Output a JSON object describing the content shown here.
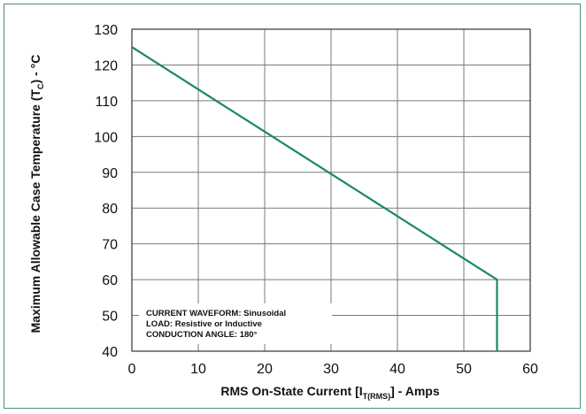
{
  "chart_data": {
    "type": "line",
    "x_label_parts": [
      "RMS On-State Current [I",
      "T(RMS)",
      "] - Amps"
    ],
    "y_label_parts": [
      "Maximum Allowable Case Temperature (T",
      "C",
      ") - °C"
    ],
    "xlim": [
      0,
      60
    ],
    "ylim": [
      40,
      130
    ],
    "x_ticks": [
      "0",
      "10",
      "20",
      "30",
      "40",
      "50",
      "60"
    ],
    "y_ticks": [
      "40",
      "50",
      "60",
      "70",
      "80",
      "90",
      "100",
      "110",
      "120",
      "130"
    ],
    "grid": true,
    "annotations": [
      "CURRENT WAVEFORM: Sinusoidal",
      "LOAD: Resistive or Inductive",
      "CONDUCTION ANGLE: 180°"
    ],
    "series": [
      {
        "color": "#1a8a5a",
        "x": [
          0,
          55,
          55
        ],
        "y": [
          125,
          60,
          40
        ]
      }
    ]
  },
  "colors": {
    "frame": "#4a8f7a",
    "grid": "#7a7a7a",
    "series": "#1a8a5a"
  }
}
